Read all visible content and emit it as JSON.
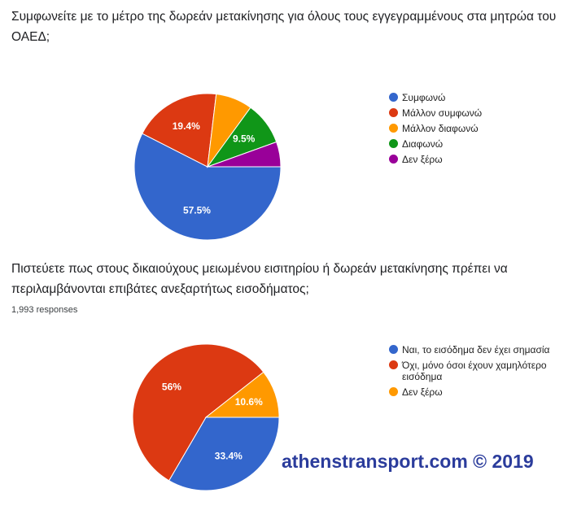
{
  "chart_data": [
    {
      "type": "pie",
      "title": "Συμφωνείτε με το μέτρο της δωρεάν μετακίνησης για όλους τους εγγεγραμμένους στα μητρώα του ΟΑΕΔ;",
      "categories": [
        "Συμφωνώ",
        "Μάλλον συμφωνώ",
        "Μάλλον διαφωνώ",
        "Διαφωνώ",
        "Δεν ξέρω"
      ],
      "values": [
        57.5,
        19.4,
        8.1,
        9.5,
        5.5
      ],
      "value_labels": [
        "57.5%",
        "19.4%",
        null,
        "9.5%",
        null
      ],
      "colors": [
        "#3366cc",
        "#dc3912",
        "#ff9900",
        "#109618",
        "#990099"
      ]
    },
    {
      "type": "pie",
      "title": "Πιστεύετε πως στους δικαιούχους μειωμένου εισιτηρίου ή δωρεάν μετακίνησης πρέπει να περιλαμβάνονται επιβάτες ανεξαρτήτως εισοδήματος;",
      "subtitle": "1,993 responses",
      "categories": [
        "Ναι, το εισόδημα δεν έχει σημασία",
        "Όχι, μόνο όσοι έχουν χαμηλότερο εισόδημα",
        "Δεν ξέρω"
      ],
      "values": [
        33.4,
        56,
        10.6
      ],
      "value_labels": [
        "33.4%",
        "56%",
        "10.6%"
      ],
      "colors": [
        "#3366cc",
        "#dc3912",
        "#ff9900"
      ]
    }
  ],
  "watermark": "athenstransport.com © 2019"
}
